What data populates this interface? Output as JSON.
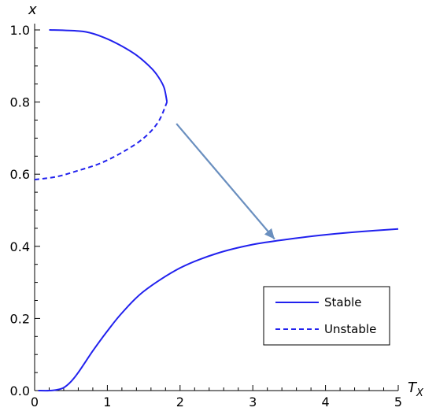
{
  "chart_data": {
    "type": "line",
    "xlabel": "T",
    "xlabel_sub": "X",
    "ylabel": "x",
    "xlim": [
      0,
      5
    ],
    "ylim": [
      0,
      1.0
    ],
    "xticks": [
      "0",
      "1",
      "2",
      "3",
      "4",
      "5"
    ],
    "yticks": [
      "0.0",
      "0.2",
      "0.4",
      "0.6",
      "0.8",
      "1.0"
    ],
    "grid": false,
    "legend_position": "bottom-right",
    "series": [
      {
        "name": "Stable",
        "style": "solid",
        "color": "#2121ee",
        "x": [
          0.2,
          0.6,
          0.8,
          1.0,
          1.2,
          1.4,
          1.6,
          1.7,
          1.78,
          1.82
        ],
        "y": [
          1.0,
          0.997,
          0.99,
          0.975,
          0.955,
          0.93,
          0.895,
          0.87,
          0.84,
          0.8
        ]
      },
      {
        "name": "Unstable",
        "style": "dashed",
        "color": "#2121ee",
        "x": [
          0.0,
          0.3,
          0.6,
          0.9,
          1.2,
          1.5,
          1.7,
          1.82
        ],
        "y": [
          0.585,
          0.593,
          0.61,
          0.63,
          0.66,
          0.7,
          0.745,
          0.8
        ]
      },
      {
        "name": "Stable",
        "style": "solid",
        "color": "#2121ee",
        "x": [
          0.05,
          0.2,
          0.3,
          0.4,
          0.5,
          0.6,
          0.8,
          1.0,
          1.2,
          1.5,
          2.0,
          2.5,
          3.0,
          3.5,
          4.0,
          4.5,
          5.0
        ],
        "y": [
          0.0,
          0.0,
          0.002,
          0.008,
          0.025,
          0.05,
          0.11,
          0.165,
          0.215,
          0.275,
          0.34,
          0.38,
          0.405,
          0.42,
          0.432,
          0.441,
          0.448
        ]
      }
    ],
    "arrow": {
      "from": [
        1.95,
        0.74
      ],
      "to": [
        3.3,
        0.42
      ],
      "color": "#6a8fbf"
    },
    "legend": [
      {
        "label": "Stable",
        "style": "solid"
      },
      {
        "label": "Unstable",
        "style": "dashed"
      }
    ]
  }
}
